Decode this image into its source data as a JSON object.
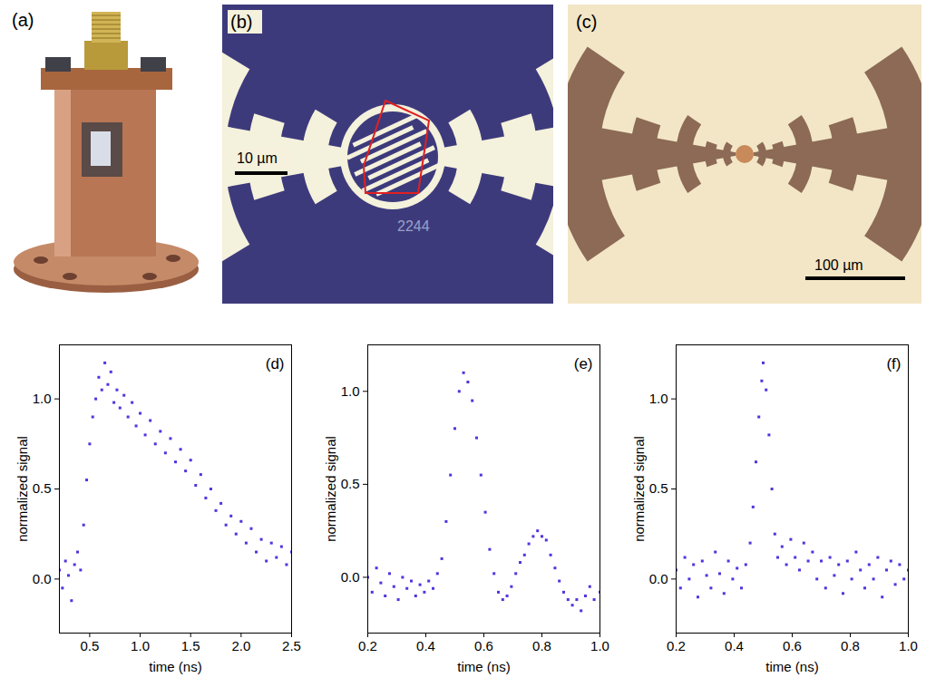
{
  "images": [
    {
      "label": "(a)"
    },
    {
      "label": "(b)",
      "scale_bar": "10 µm",
      "chip_marking": "2244"
    },
    {
      "label": "(c)",
      "scale_bar": "100 µm"
    }
  ],
  "chart_data": [
    {
      "type": "scatter",
      "title": "(d)",
      "x_label": "time (ns)",
      "y_label": "normalized signal",
      "color": "#5533dd",
      "marker": "square",
      "xlim": [
        0.2,
        2.5
      ],
      "xticks": [
        0.5,
        {
          "value": 1,
          "label": "1.0"
        },
        1.5,
        {
          "value": 2,
          "label": "2.0"
        },
        2.5
      ],
      "ylim": [
        -0.3,
        1.3
      ],
      "yticks": [
        {
          "value": 0,
          "label": "0.0"
        },
        0.5,
        {
          "value": 1,
          "label": "1.0"
        }
      ],
      "x": [
        0.2,
        0.23,
        0.26,
        0.29,
        0.32,
        0.35,
        0.38,
        0.41,
        0.44,
        0.47,
        0.5,
        0.53,
        0.56,
        0.59,
        0.62,
        0.65,
        0.68,
        0.71,
        0.74,
        0.77,
        0.8,
        0.84,
        0.88,
        0.92,
        0.96,
        1.0,
        1.05,
        1.1,
        1.15,
        1.2,
        1.25,
        1.3,
        1.35,
        1.4,
        1.45,
        1.5,
        1.55,
        1.6,
        1.65,
        1.7,
        1.75,
        1.8,
        1.85,
        1.9,
        1.95,
        2.0,
        2.05,
        2.1,
        2.15,
        2.2,
        2.25,
        2.3,
        2.35,
        2.4,
        2.45,
        2.5
      ],
      "values": [
        0.05,
        -0.05,
        0.1,
        0.02,
        -0.12,
        0.08,
        0.15,
        0.05,
        0.3,
        0.55,
        0.75,
        0.9,
        1.0,
        1.12,
        1.05,
        1.2,
        1.08,
        1.15,
        0.98,
        1.05,
        0.95,
        1.02,
        0.9,
        0.98,
        0.85,
        0.92,
        0.8,
        0.88,
        0.75,
        0.82,
        0.7,
        0.78,
        0.65,
        0.72,
        0.6,
        0.66,
        0.52,
        0.58,
        0.45,
        0.5,
        0.38,
        0.42,
        0.3,
        0.35,
        0.25,
        0.32,
        0.2,
        0.28,
        0.15,
        0.22,
        0.1,
        0.2,
        0.12,
        0.18,
        0.08,
        0.15
      ]
    },
    {
      "type": "scatter",
      "title": "(e)",
      "x_label": "time (ns)",
      "y_label": "normalized signal",
      "color": "#5533dd",
      "marker": "square",
      "xlim": [
        0.2,
        1.0
      ],
      "xticks": [
        0.2,
        0.4,
        0.6,
        0.8,
        {
          "value": 1,
          "label": "1.0"
        }
      ],
      "ylim": [
        -0.3,
        1.25
      ],
      "yticks": [
        {
          "value": 0,
          "label": "0.0"
        },
        0.5,
        {
          "value": 1,
          "label": "1.0"
        }
      ],
      "x": [
        0.2,
        0.215,
        0.23,
        0.245,
        0.26,
        0.275,
        0.29,
        0.305,
        0.32,
        0.335,
        0.35,
        0.365,
        0.38,
        0.395,
        0.41,
        0.425,
        0.44,
        0.455,
        0.47,
        0.485,
        0.5,
        0.515,
        0.53,
        0.545,
        0.56,
        0.575,
        0.59,
        0.605,
        0.62,
        0.635,
        0.65,
        0.665,
        0.68,
        0.695,
        0.71,
        0.725,
        0.74,
        0.755,
        0.77,
        0.785,
        0.8,
        0.815,
        0.83,
        0.845,
        0.86,
        0.875,
        0.89,
        0.905,
        0.92,
        0.935,
        0.95,
        0.965,
        0.98,
        1.0
      ],
      "values": [
        0.0,
        -0.08,
        0.05,
        -0.03,
        -0.1,
        0.02,
        -0.05,
        -0.12,
        0.0,
        -0.06,
        -0.02,
        -0.1,
        -0.04,
        -0.08,
        -0.02,
        -0.06,
        0.02,
        0.1,
        0.3,
        0.55,
        0.8,
        1.0,
        1.1,
        1.05,
        0.95,
        0.75,
        0.55,
        0.35,
        0.15,
        0.02,
        -0.08,
        -0.12,
        -0.1,
        -0.05,
        0.02,
        0.08,
        0.12,
        0.18,
        0.22,
        0.25,
        0.22,
        0.2,
        0.12,
        0.05,
        -0.02,
        -0.08,
        -0.12,
        -0.15,
        -0.12,
        -0.18,
        -0.1,
        -0.05,
        -0.12,
        -0.08
      ]
    },
    {
      "type": "scatter",
      "title": "(f)",
      "x_label": "time (ns)",
      "y_label": "normalized signal",
      "color": "#5533dd",
      "marker": "square",
      "xlim": [
        0.2,
        1.0
      ],
      "xticks": [
        0.2,
        0.4,
        0.6,
        0.8,
        {
          "value": 1,
          "label": "1.0"
        }
      ],
      "ylim": [
        -0.3,
        1.3
      ],
      "yticks": [
        {
          "value": 0,
          "label": "0.0"
        },
        0.5,
        {
          "value": 1,
          "label": "1.0"
        }
      ],
      "x": [
        0.2,
        0.215,
        0.23,
        0.245,
        0.26,
        0.275,
        0.29,
        0.305,
        0.32,
        0.335,
        0.35,
        0.365,
        0.38,
        0.395,
        0.41,
        0.425,
        0.44,
        0.455,
        0.465,
        0.475,
        0.485,
        0.495,
        0.5,
        0.51,
        0.52,
        0.53,
        0.54,
        0.55,
        0.565,
        0.58,
        0.595,
        0.61,
        0.625,
        0.64,
        0.655,
        0.67,
        0.685,
        0.7,
        0.715,
        0.73,
        0.745,
        0.76,
        0.775,
        0.79,
        0.805,
        0.82,
        0.835,
        0.85,
        0.865,
        0.88,
        0.895,
        0.91,
        0.925,
        0.94,
        0.955,
        0.97,
        0.985,
        1.0
      ],
      "values": [
        0.05,
        -0.05,
        0.12,
        0.0,
        0.08,
        -0.1,
        0.1,
        0.02,
        -0.05,
        0.15,
        0.03,
        -0.08,
        0.1,
        0.0,
        0.06,
        -0.05,
        0.08,
        0.2,
        0.4,
        0.65,
        0.9,
        1.1,
        1.2,
        1.05,
        0.8,
        0.5,
        0.25,
        0.12,
        0.18,
        0.08,
        0.22,
        0.12,
        0.05,
        0.2,
        0.1,
        0.15,
        0.0,
        0.1,
        -0.05,
        0.12,
        0.02,
        0.08,
        -0.08,
        0.1,
        0.0,
        0.15,
        0.05,
        -0.05,
        0.08,
        0.0,
        0.12,
        -0.1,
        0.05,
        0.1,
        -0.03,
        0.08,
        0.0,
        0.05
      ]
    }
  ]
}
